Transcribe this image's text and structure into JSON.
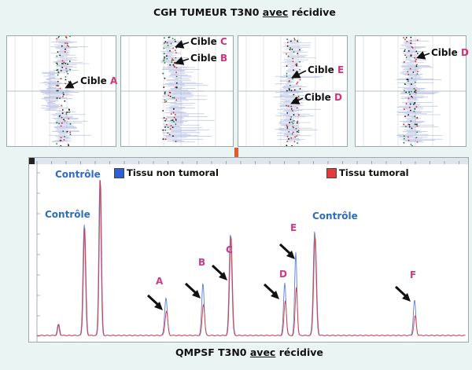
{
  "top_title": {
    "pre": "CGH TUMEUR T3N0 ",
    "under": "avec",
    "post": " récidive"
  },
  "cgh_labels": [
    {
      "prefix": "Cible",
      "letter": "A"
    },
    {
      "prefix": "Cible",
      "letter": "C"
    },
    {
      "prefix": "Cible",
      "letter": "B"
    },
    {
      "prefix": "Cible",
      "letter": "E"
    },
    {
      "prefix": "Cible",
      "letter": "D"
    },
    {
      "prefix": "Cible",
      "letter": "D"
    }
  ],
  "legend": {
    "normal": "Tissu non tumoral",
    "tumor": "Tissu tumoral"
  },
  "controls": [
    "Contrôle",
    "Contrôle",
    "Contrôle"
  ],
  "peak_labels": [
    "A",
    "B",
    "C",
    "D",
    "E",
    "F"
  ],
  "bottom_title": {
    "pre": "QMPSF T3N0 ",
    "under": "avec",
    "post": " récidive"
  },
  "colors": {
    "normal": "#2f5fd0",
    "tumor": "#e33b3b",
    "letters": "#c63c8a",
    "control": "#2d6cc3",
    "arrow": "#e65a2a"
  },
  "icons": [
    "arrow-icon",
    "down-arrow-icon"
  ]
}
